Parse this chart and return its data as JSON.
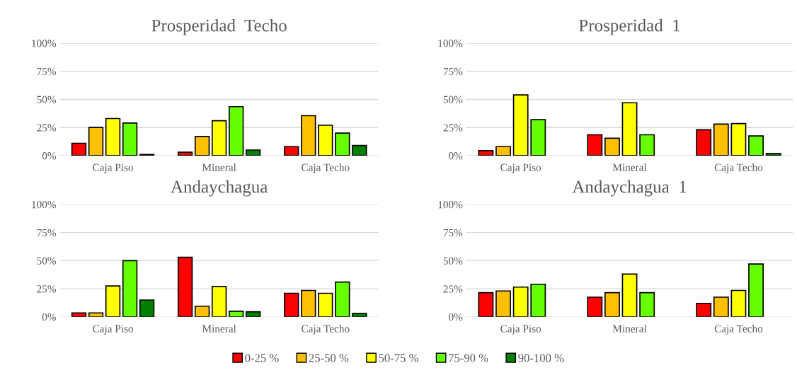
{
  "chart_data": [
    {
      "type": "bar",
      "title": "Prosperidad  Techo",
      "categories": [
        "Caja Piso",
        "Mineral",
        "Caja Techo"
      ],
      "ylim": [
        0,
        100
      ],
      "yticks": [
        {
          "value": 0,
          "label": "0%"
        },
        {
          "value": 25,
          "label": "25%"
        },
        {
          "value": 50,
          "label": "50%"
        },
        {
          "value": 75,
          "label": "75%"
        },
        {
          "value": 100,
          "label": "100%"
        }
      ],
      "grid": "y",
      "series": [
        {
          "color": "#ff0000",
          "values": [
            11,
            3,
            8
          ]
        },
        {
          "color": "#ffc000",
          "values": [
            25,
            17,
            35.5
          ]
        },
        {
          "color": "#ffff00",
          "values": [
            33,
            31,
            27
          ]
        },
        {
          "color": "#66ff00",
          "values": [
            29,
            43.5,
            20
          ]
        },
        {
          "color": "#008000",
          "values": [
            1,
            5,
            9
          ]
        }
      ]
    },
    {
      "type": "bar",
      "title": "Prosperidad  1",
      "categories": [
        "Caja Piso",
        "Mineral",
        "Caja Techo"
      ],
      "ylim": [
        0,
        100
      ],
      "yticks": [
        {
          "value": 0,
          "label": "0%"
        },
        {
          "value": 25,
          "label": "25%"
        },
        {
          "value": 50,
          "label": "50%"
        },
        {
          "value": 75,
          "label": "75%"
        },
        {
          "value": 100,
          "label": "100%"
        }
      ],
      "grid": "y",
      "series": [
        {
          "color": "#ff0000",
          "values": [
            4.5,
            18.5,
            23
          ]
        },
        {
          "color": "#ffc000",
          "values": [
            8,
            15.5,
            28
          ]
        },
        {
          "color": "#ffff00",
          "values": [
            54,
            47,
            28.5
          ]
        },
        {
          "color": "#66ff00",
          "values": [
            32,
            18.5,
            17.5
          ]
        },
        {
          "color": "#008000",
          "values": [
            null,
            null,
            2
          ]
        }
      ]
    },
    {
      "type": "bar",
      "title": "Andaychagua",
      "categories": [
        "Caja Piso",
        "Mineral",
        "Caja Techo"
      ],
      "ylim": [
        0,
        100
      ],
      "yticks": [
        {
          "value": 0,
          "label": "0%"
        },
        {
          "value": 25,
          "label": "25%"
        },
        {
          "value": 50,
          "label": "50%"
        },
        {
          "value": 75,
          "label": "75%"
        },
        {
          "value": 100,
          "label": "100%"
        }
      ],
      "grid": "y",
      "series": [
        {
          "color": "#ff0000",
          "values": [
            3.5,
            53,
            21
          ]
        },
        {
          "color": "#ffc000",
          "values": [
            3.5,
            9.5,
            23.5
          ]
        },
        {
          "color": "#ffff00",
          "values": [
            27.5,
            27,
            21
          ]
        },
        {
          "color": "#66ff00",
          "values": [
            50,
            5,
            31
          ]
        },
        {
          "color": "#008000",
          "values": [
            15,
            4.5,
            3
          ]
        }
      ]
    },
    {
      "type": "bar",
      "title": "Andaychagua  1",
      "categories": [
        "Caja Piso",
        "Mineral",
        "Caja Techo"
      ],
      "ylim": [
        0,
        100
      ],
      "yticks": [
        {
          "value": 0,
          "label": "0%"
        },
        {
          "value": 25,
          "label": "25%"
        },
        {
          "value": 50,
          "label": "50%"
        },
        {
          "value": 75,
          "label": "75%"
        },
        {
          "value": 100,
          "label": "100%"
        }
      ],
      "grid": "y",
      "legend": "bottom",
      "series": [
        {
          "name": "0-25 %",
          "color": "#ff0000",
          "values": [
            21.5,
            17.5,
            12
          ]
        },
        {
          "name": "25-50 %",
          "color": "#ffc000",
          "values": [
            23,
            21.5,
            17.5
          ]
        },
        {
          "name": "50-75 %",
          "color": "#ffff00",
          "values": [
            26.5,
            38,
            23.5
          ]
        },
        {
          "name": "75-90 %",
          "color": "#66ff00",
          "values": [
            29,
            21.5,
            47
          ]
        },
        {
          "name": "90-100 %",
          "color": "#008000",
          "values": [
            null,
            null,
            null
          ]
        }
      ]
    }
  ]
}
